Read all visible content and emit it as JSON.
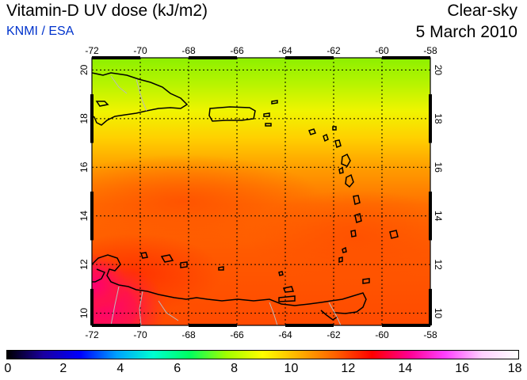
{
  "header": {
    "title": "Vitamin-D UV dose (kJ/m2)",
    "credit": "KNMI / ESA",
    "condition": "Clear-sky",
    "date": "5 March 2010"
  },
  "map": {
    "lon_ticks": [
      "-72",
      "-70",
      "-68",
      "-66",
      "-64",
      "-62",
      "-60",
      "-58"
    ],
    "lat_ticks": [
      "10",
      "12",
      "14",
      "16",
      "18",
      "20"
    ],
    "lon_range": [
      -72,
      -58
    ],
    "lat_range": [
      9.5,
      20.5
    ],
    "grid": true
  },
  "colorbar": {
    "range": [
      0,
      18
    ],
    "tick_labels": [
      "0",
      "2",
      "4",
      "6",
      "8",
      "10",
      "12",
      "14",
      "16",
      "18"
    ],
    "colors": [
      "#000000",
      "#1a00a0",
      "#0000ff",
      "#00a0ff",
      "#00ffd0",
      "#00ff60",
      "#a0ff00",
      "#ffff00",
      "#ffb000",
      "#ff6000",
      "#ff0000",
      "#ff0090",
      "#ff40ff",
      "#ffd0ff",
      "#ffffff"
    ]
  },
  "colors": {
    "credit_text": "#0033cc",
    "coastline": "#000000",
    "borders": "#bbbbbb"
  }
}
